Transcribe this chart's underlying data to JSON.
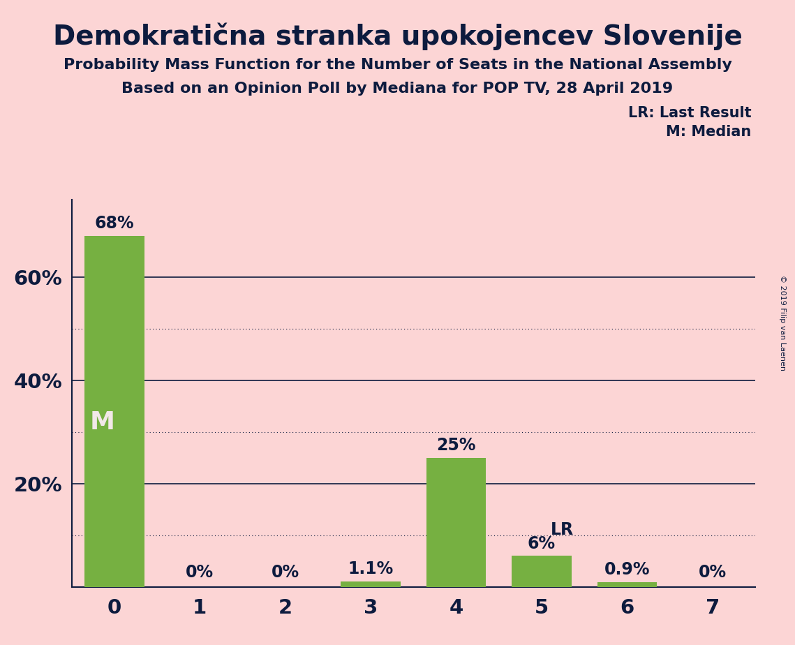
{
  "title": "Demokratična stranka upokojencev Slovenije",
  "subtitle1": "Probability Mass Function for the Number of Seats in the National Assembly",
  "subtitle2": "Based on an Opinion Poll by Mediana for POP TV, 28 April 2019",
  "copyright": "© 2019 Filip van Laenen",
  "categories": [
    0,
    1,
    2,
    3,
    4,
    5,
    6,
    7
  ],
  "values": [
    68.0,
    0.0,
    0.0,
    1.1,
    25.0,
    6.0,
    0.9,
    0.0
  ],
  "bar_labels": [
    "68%",
    "0%",
    "0%",
    "1.1%",
    "25%",
    "6%",
    "0.9%",
    "0%"
  ],
  "bar_color": "#76b041",
  "background_color": "#fcd5d5",
  "text_color": "#0d1b3e",
  "median_bar": 0,
  "median_label": "M",
  "lr_bar": 5,
  "lr_label": "LR",
  "legend_lr": "LR: Last Result",
  "legend_m": "M: Median",
  "ylim": [
    0,
    75
  ],
  "solid_gridlines": [
    20,
    40,
    60
  ],
  "dotted_gridlines": [
    10,
    30,
    50
  ],
  "ytick_labels": [
    "20%",
    "40%",
    "60%"
  ],
  "ytick_values": [
    20,
    40,
    60
  ]
}
